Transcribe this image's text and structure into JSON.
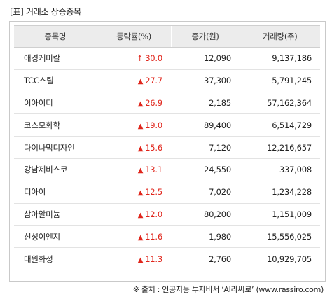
{
  "caption": "[표] 거래소 상승종목",
  "columns": [
    "종목명",
    "등락률(%)",
    "종가(원)",
    "거래량(주)"
  ],
  "rows": [
    {
      "name": "애경케미칼",
      "change": "30.0",
      "price": "12,090",
      "volume": "9,137,186",
      "marker": "↑",
      "marker_icon": "thin-up-arrow-icon"
    },
    {
      "name": "TCC스틸",
      "change": "27.7",
      "price": "37,300",
      "volume": "5,791,245",
      "marker": "▲",
      "marker_icon": "up-triangle-icon"
    },
    {
      "name": "이아이디",
      "change": "26.9",
      "price": "2,185",
      "volume": "57,162,364",
      "marker": "▲",
      "marker_icon": "up-triangle-icon"
    },
    {
      "name": "코스모화학",
      "change": "19.0",
      "price": "89,400",
      "volume": "6,514,729",
      "marker": "▲",
      "marker_icon": "up-triangle-icon"
    },
    {
      "name": "다이나믹디자인",
      "change": "15.6",
      "price": "7,120",
      "volume": "12,216,657",
      "marker": "▲",
      "marker_icon": "up-triangle-icon"
    },
    {
      "name": "강남제비스코",
      "change": "13.1",
      "price": "24,550",
      "volume": "337,008",
      "marker": "▲",
      "marker_icon": "up-triangle-icon"
    },
    {
      "name": "디아이",
      "change": "12.5",
      "price": "7,020",
      "volume": "1,234,228",
      "marker": "▲",
      "marker_icon": "up-triangle-icon"
    },
    {
      "name": "삼아알미늄",
      "change": "12.0",
      "price": "80,200",
      "volume": "1,151,009",
      "marker": "▲",
      "marker_icon": "up-triangle-icon"
    },
    {
      "name": "신성이엔지",
      "change": "11.6",
      "price": "1,980",
      "volume": "15,556,025",
      "marker": "▲",
      "marker_icon": "up-triangle-icon"
    },
    {
      "name": "대원화성",
      "change": "11.3",
      "price": "2,760",
      "volume": "10,929,705",
      "marker": "▲",
      "marker_icon": "up-triangle-icon"
    }
  ],
  "source": "※ 출처 : 인공지능 투자비서 ‘AI라씨로’ (www.rassiro.com)",
  "colors": {
    "up": "#e0251b",
    "header_bg": "#ececec",
    "border": "#c9c9c9"
  }
}
